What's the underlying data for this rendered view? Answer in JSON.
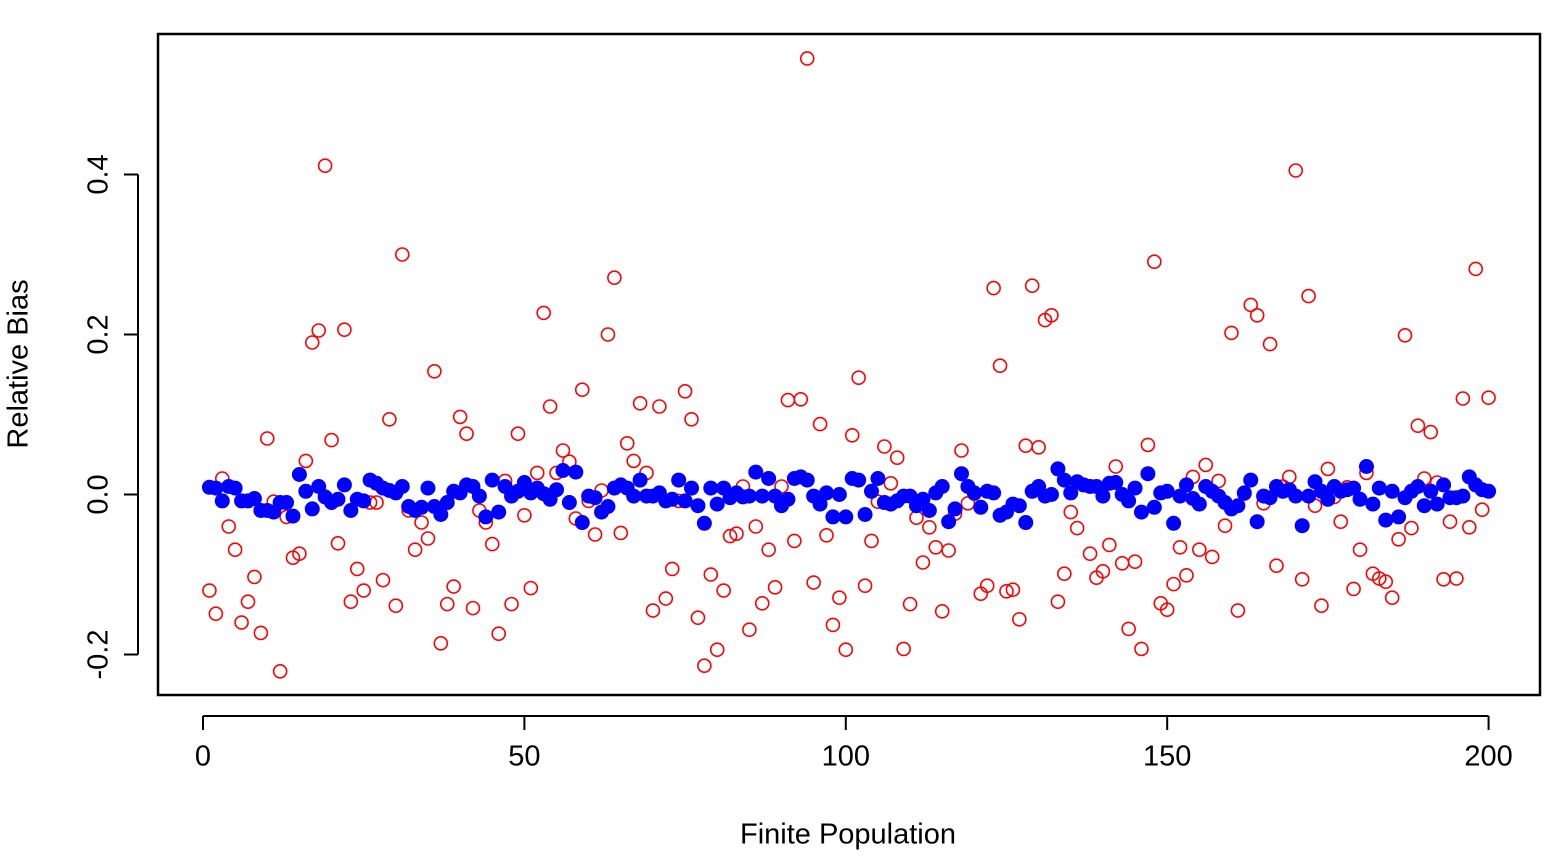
{
  "chart_data": {
    "type": "scatter",
    "x_label": "Finite Population",
    "y_label": "Relative Bias",
    "x": [
      1,
      2,
      3,
      4,
      5,
      6,
      7,
      8,
      9,
      10,
      11,
      12,
      13,
      14,
      15,
      16,
      17,
      18,
      19,
      20,
      21,
      22,
      23,
      24,
      25,
      26,
      27,
      28,
      29,
      30,
      31,
      32,
      33,
      34,
      35,
      36,
      37,
      38,
      39,
      40,
      41,
      42,
      43,
      44,
      45,
      46,
      47,
      48,
      49,
      50,
      51,
      52,
      53,
      54,
      55,
      56,
      57,
      58,
      59,
      60,
      61,
      62,
      63,
      64,
      65,
      66,
      67,
      68,
      69,
      70,
      71,
      72,
      73,
      74,
      75,
      76,
      77,
      78,
      79,
      80,
      81,
      82,
      83,
      84,
      85,
      86,
      87,
      88,
      89,
      90,
      91,
      92,
      93,
      94,
      95,
      96,
      97,
      98,
      99,
      100,
      101,
      102,
      103,
      104,
      105,
      106,
      107,
      108,
      109,
      110,
      111,
      112,
      113,
      114,
      115,
      116,
      117,
      118,
      119,
      120,
      121,
      122,
      123,
      124,
      125,
      126,
      127,
      128,
      129,
      130,
      131,
      132,
      133,
      134,
      135,
      136,
      137,
      138,
      139,
      140,
      141,
      142,
      143,
      144,
      145,
      146,
      147,
      148,
      149,
      150,
      151,
      152,
      153,
      154,
      155,
      156,
      157,
      158,
      159,
      160,
      161,
      162,
      163,
      164,
      165,
      166,
      167,
      168,
      169,
      170,
      171,
      172,
      173,
      174,
      175,
      176,
      177,
      178,
      179,
      180,
      181,
      182,
      183,
      184,
      185,
      186,
      187,
      188,
      189,
      190,
      191,
      192,
      193,
      194,
      195,
      196,
      197,
      198,
      199,
      200
    ],
    "series": [
      {
        "color": "#ff0000",
        "marker": "open",
        "values": [
          -0.12,
          -0.149,
          0.02,
          -0.04,
          -0.069,
          -0.16,
          -0.134,
          -0.103,
          -0.173,
          0.07,
          -0.009,
          -0.221,
          -0.028,
          -0.079,
          -0.074,
          0.042,
          0.19,
          0.205,
          0.411,
          0.068,
          -0.061,
          0.206,
          -0.134,
          -0.093,
          -0.12,
          -0.01,
          -0.01,
          -0.107,
          0.094,
          -0.139,
          0.3,
          -0.02,
          -0.069,
          -0.035,
          -0.055,
          0.154,
          -0.186,
          -0.137,
          -0.115,
          0.097,
          0.076,
          -0.142,
          -0.02,
          -0.035,
          -0.062,
          -0.174,
          0.017,
          -0.137,
          0.076,
          -0.026,
          -0.117,
          0.027,
          0.227,
          0.11,
          0.027,
          0.055,
          0.041,
          -0.03,
          0.131,
          -0.008,
          -0.05,
          0.005,
          0.2,
          0.271,
          -0.048,
          0.064,
          0.042,
          0.114,
          0.027,
          -0.145,
          0.11,
          -0.13,
          -0.093,
          -0.008,
          0.129,
          0.094,
          -0.154,
          -0.214,
          -0.1,
          -0.194,
          -0.12,
          -0.052,
          -0.049,
          0.01,
          -0.169,
          -0.04,
          -0.136,
          -0.069,
          -0.116,
          0.01,
          0.118,
          -0.058,
          0.119,
          0.545,
          -0.11,
          0.088,
          -0.051,
          -0.163,
          -0.129,
          -0.194,
          0.074,
          0.146,
          -0.114,
          -0.058,
          -0.009,
          0.06,
          0.014,
          0.046,
          -0.193,
          -0.137,
          -0.029,
          -0.085,
          -0.041,
          -0.066,
          -0.146,
          -0.07,
          -0.024,
          0.055,
          -0.011,
          0.001,
          -0.124,
          -0.114,
          0.258,
          0.161,
          -0.121,
          -0.119,
          -0.156,
          0.061,
          0.261,
          0.059,
          0.218,
          0.224,
          -0.134,
          -0.099,
          -0.022,
          -0.042,
          0.012,
          -0.074,
          -0.104,
          -0.096,
          -0.063,
          0.035,
          -0.086,
          -0.168,
          -0.084,
          -0.193,
          0.062,
          0.291,
          -0.136,
          -0.144,
          -0.112,
          -0.066,
          -0.101,
          0.022,
          -0.069,
          0.037,
          -0.078,
          0.017,
          -0.039,
          0.202,
          -0.145,
          0.001,
          0.237,
          0.224,
          -0.011,
          0.188,
          -0.089,
          0.01,
          0.022,
          0.405,
          -0.106,
          0.248,
          -0.014,
          -0.139,
          0.032,
          -0.003,
          -0.034,
          0.009,
          -0.118,
          -0.069,
          0.027,
          -0.099,
          -0.105,
          -0.109,
          -0.129,
          -0.056,
          0.199,
          -0.042,
          0.086,
          0.02,
          0.078,
          0.015,
          -0.106,
          -0.034,
          -0.105,
          0.12,
          -0.041,
          0.282,
          -0.019,
          0.121
        ]
      },
      {
        "color": "#0000ff",
        "marker": "filled",
        "values": [
          0.009,
          0.008,
          -0.008,
          0.01,
          0.008,
          -0.008,
          -0.008,
          -0.005,
          -0.02,
          -0.02,
          -0.022,
          -0.01,
          -0.01,
          -0.027,
          0.025,
          0.004,
          -0.018,
          0.01,
          -0.003,
          -0.01,
          -0.006,
          0.012,
          -0.02,
          -0.006,
          -0.008,
          0.018,
          0.014,
          0.008,
          0.005,
          0.002,
          0.01,
          -0.015,
          -0.02,
          -0.016,
          0.008,
          -0.015,
          -0.025,
          -0.01,
          0.004,
          0.002,
          0.012,
          0.01,
          -0.002,
          -0.028,
          0.018,
          -0.022,
          0.01,
          -0.002,
          0.004,
          0.015,
          0.002,
          0.008,
          0.001,
          -0.006,
          0.006,
          0.03,
          -0.01,
          0.028,
          -0.035,
          -0.002,
          -0.004,
          -0.022,
          -0.015,
          0.008,
          0.012,
          0.008,
          -0.002,
          0.018,
          -0.002,
          -0.002,
          0.002,
          -0.008,
          -0.006,
          0.018,
          -0.008,
          0.008,
          -0.014,
          -0.036,
          0.008,
          -0.012,
          0.008,
          -0.004,
          0.002,
          -0.003,
          -0.002,
          0.028,
          -0.002,
          0.02,
          -0.002,
          -0.014,
          -0.006,
          0.02,
          0.022,
          0.018,
          -0.002,
          -0.012,
          0.002,
          -0.028,
          0,
          -0.028,
          0.02,
          0.018,
          -0.025,
          0.004,
          0.02,
          -0.01,
          -0.012,
          -0.008,
          -0.002,
          -0.002,
          -0.014,
          -0.006,
          -0.02,
          0.002,
          0.01,
          -0.034,
          -0.018,
          0.026,
          0.01,
          0.002,
          -0.016,
          0.004,
          0.002,
          -0.026,
          -0.022,
          -0.012,
          -0.014,
          -0.035,
          0.004,
          0.01,
          -0.002,
          0,
          0.032,
          0.018,
          0.002,
          0.016,
          0.012,
          0.01,
          0.01,
          -0.002,
          0.014,
          0.015,
          0,
          -0.008,
          0.008,
          -0.022,
          0.026,
          -0.016,
          0.002,
          0.004,
          -0.036,
          -0.002,
          0.012,
          -0.005,
          -0.012,
          0.01,
          0.004,
          -0.002,
          -0.01,
          -0.018,
          -0.014,
          0.002,
          0.018,
          -0.034,
          -0.002,
          -0.004,
          0.01,
          0.004,
          0.006,
          -0.002,
          -0.039,
          -0.002,
          0.016,
          0.004,
          -0.006,
          0.01,
          0.004,
          0.006,
          0.008,
          -0.006,
          0.035,
          -0.012,
          0.008,
          -0.032,
          0.004,
          -0.028,
          -0.004,
          0.004,
          0.01,
          -0.014,
          0.004,
          -0.012,
          0.012,
          -0.004,
          -0.004,
          -0.002,
          0.022,
          0.012,
          0.006,
          0.004
        ]
      }
    ],
    "xlim": [
      -7,
      208
    ],
    "ylim": [
      -0.2506,
      0.5756
    ],
    "xticks": [
      0,
      50,
      100,
      150,
      200
    ],
    "yticks": [
      -0.2,
      {
        "value": 0,
        "label": "0.0"
      },
      0.2,
      0.4
    ]
  }
}
